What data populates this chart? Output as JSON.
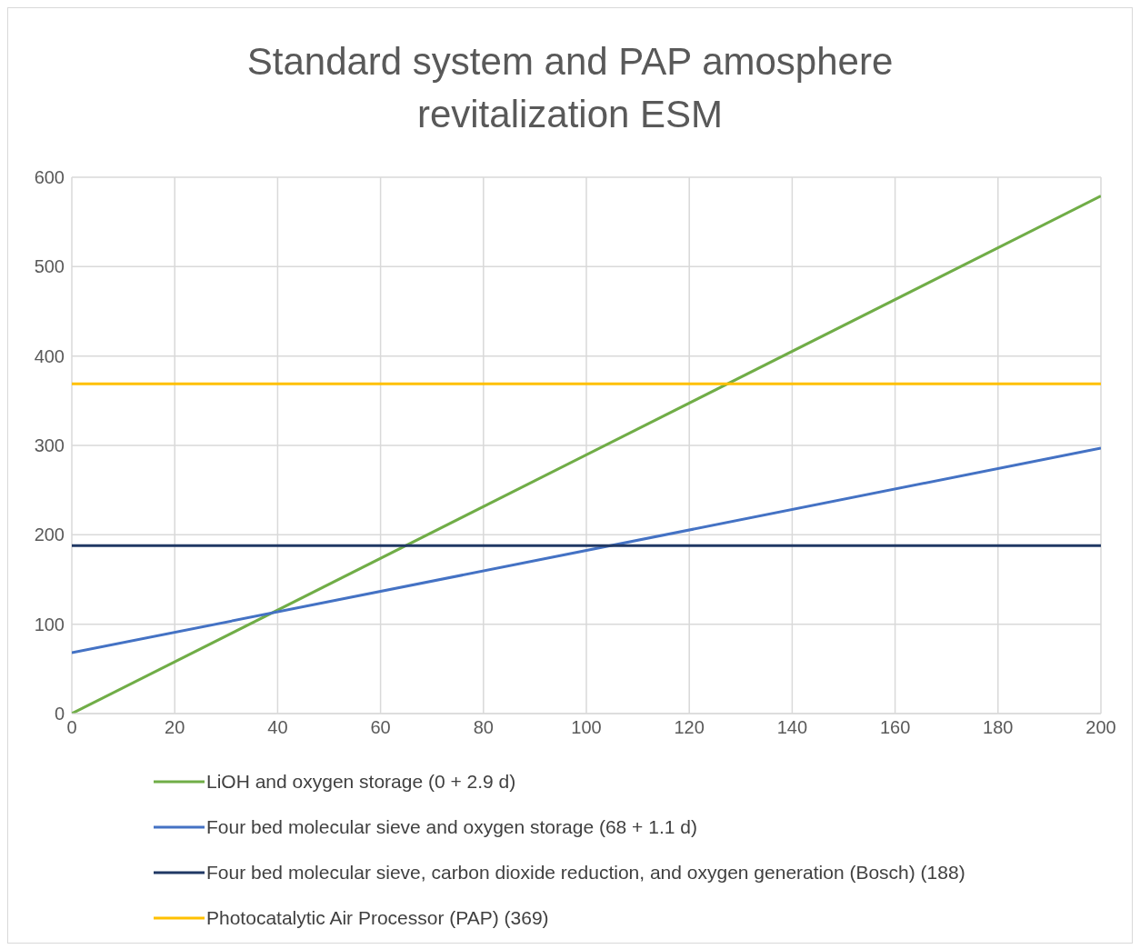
{
  "chart_data": {
    "type": "line",
    "title": "Standard system and PAP amosphere revitalization ESM",
    "x": [
      0,
      200
    ],
    "xlim": [
      0,
      200
    ],
    "xticks": [
      0,
      20,
      40,
      60,
      80,
      100,
      120,
      140,
      160,
      180,
      200
    ],
    "ylim": [
      0,
      600
    ],
    "yticks": [
      0,
      100,
      200,
      300,
      400,
      500,
      600
    ],
    "grid": true,
    "legend": "bottom",
    "marker": "none",
    "line_style": "solid",
    "series": [
      {
        "name": "LiOH and oxygen storage (0 + 2.9 d)",
        "color": "#70ad47",
        "values": [
          0,
          579
        ]
      },
      {
        "name": "Four bed molecular sieve and oxygen storage (68 + 1.1 d)",
        "color": "#4472c4",
        "values": [
          68,
          297
        ]
      },
      {
        "name": "Four bed molecular sieve, carbon dioxide reduction, and oxygen generation (Bosch) (188)",
        "color": "#203864",
        "values": [
          188,
          188
        ]
      },
      {
        "name": "Photocatalytic Air Processor (PAP) (369)",
        "color": "#ffc000",
        "values": [
          369,
          369
        ]
      }
    ]
  }
}
